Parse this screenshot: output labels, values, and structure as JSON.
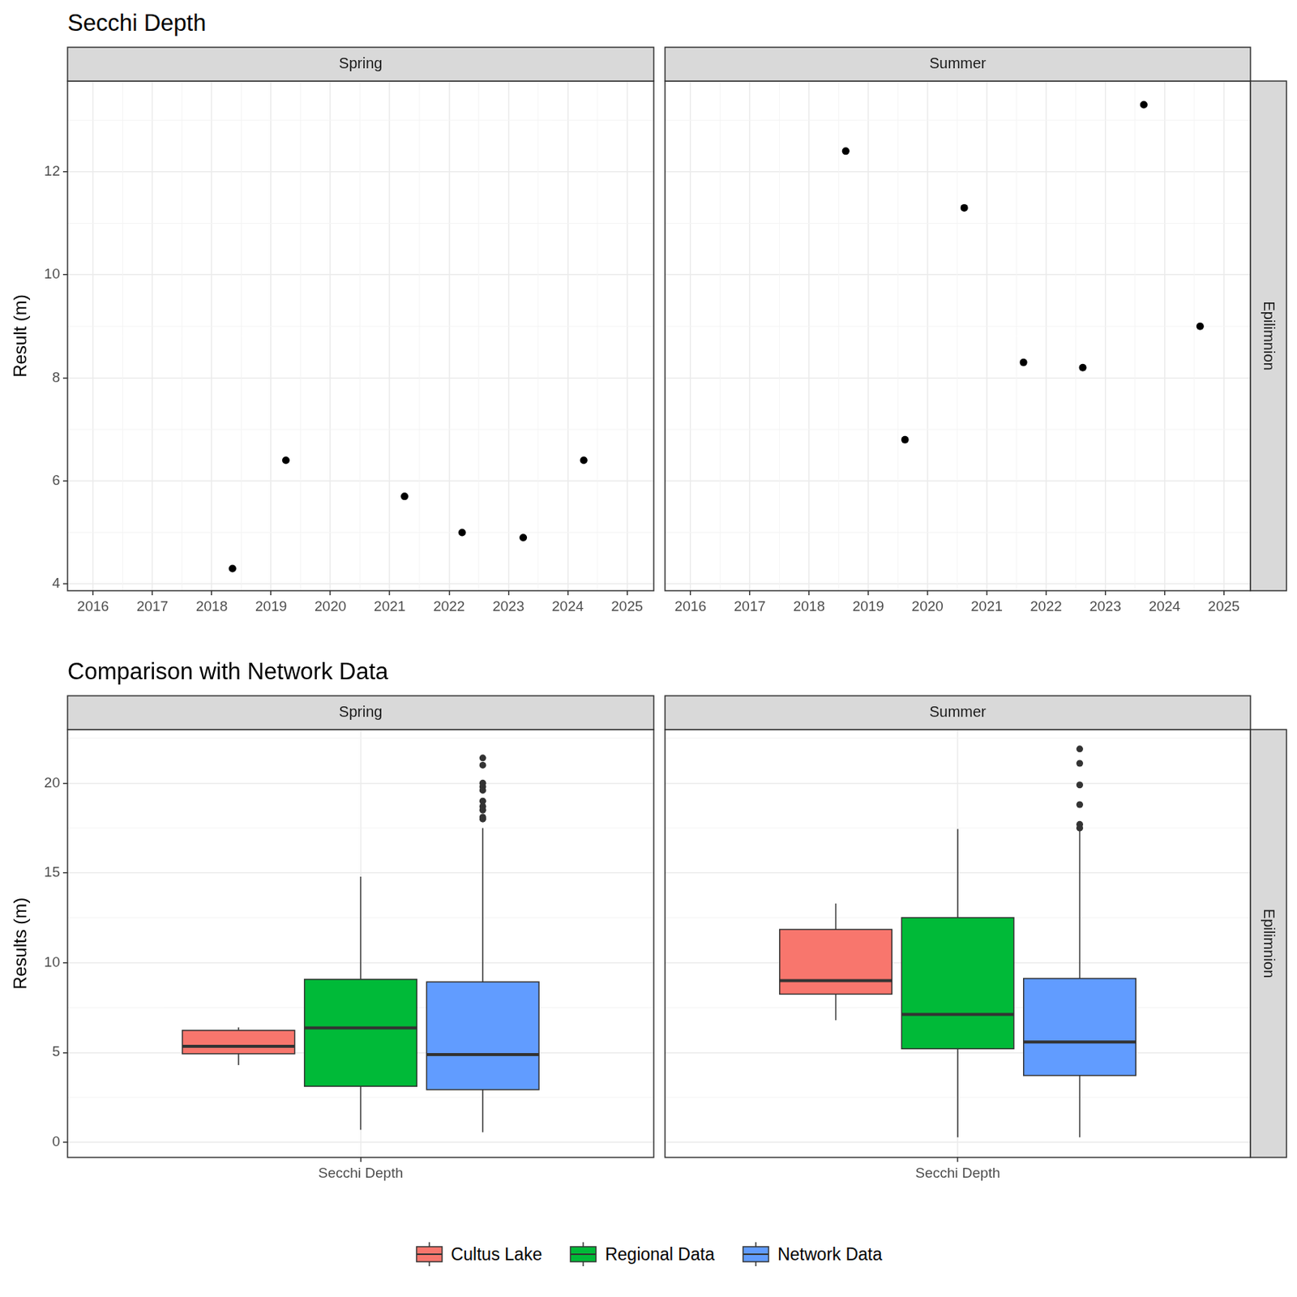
{
  "chart_data": [
    {
      "type": "scatter",
      "title": "Secchi Depth",
      "subtitle": "Spring",
      "ylabel": "Result (m)",
      "x": [
        2018.35,
        2019.25,
        2021.25,
        2022.22,
        2023.25,
        2024.27
      ],
      "values": [
        4.3,
        6.4,
        5.7,
        5.0,
        4.9,
        6.4
      ],
      "color": "#000000",
      "marker": "circle",
      "xlim": [
        2015.57,
        2025.45
      ],
      "xticks": [
        2016,
        2017,
        2018,
        2019,
        2020,
        2021,
        2022,
        2023,
        2024,
        2025
      ],
      "ylim": [
        3.87,
        13.76
      ],
      "yticks": [
        4,
        6,
        8,
        10,
        12
      ],
      "grid": true
    },
    {
      "type": "scatter",
      "subtitle": "Summer",
      "annotations": [
        "Epilimnion"
      ],
      "x": [
        2018.62,
        2019.62,
        2020.62,
        2021.62,
        2022.62,
        2023.65,
        2024.6
      ],
      "values": [
        12.4,
        6.8,
        11.3,
        8.3,
        8.2,
        13.3,
        9.0
      ],
      "color": "#000000",
      "marker": "circle",
      "xlim": [
        2015.57,
        2025.45
      ],
      "xticks": [
        2016,
        2017,
        2018,
        2019,
        2020,
        2021,
        2022,
        2023,
        2024,
        2025
      ],
      "ylim": [
        3.87,
        13.76
      ],
      "yticks": [
        4,
        6,
        8,
        10,
        12
      ],
      "grid": true,
      "tick_labels": "x"
    },
    {
      "type": "box",
      "title": "Comparison with Network Data",
      "subtitle": "Spring",
      "ylabel": "Results (m)",
      "categories": [
        "Secchi Depth"
      ],
      "series": [
        {
          "name": "Cultus Lake",
          "color": "#F8766D",
          "whisker_low": 4.3,
          "q1": 4.93,
          "median": 5.35,
          "q3": 6.23,
          "whisker_high": 6.4,
          "outliers": []
        },
        {
          "name": "Regional Data",
          "color": "#00BA38",
          "whisker_low": 0.7,
          "q1": 3.12,
          "median": 6.37,
          "q3": 9.07,
          "whisker_high": 14.79,
          "outliers": []
        },
        {
          "name": "Network Data",
          "color": "#619CFF",
          "whisker_low": 0.56,
          "q1": 2.93,
          "median": 4.88,
          "q3": 8.93,
          "whisker_high": 17.49,
          "outliers": [
            21.4,
            21.0,
            20.0,
            19.8,
            19.6,
            19.0,
            18.7,
            18.5,
            18.1,
            18.0
          ]
        }
      ],
      "ylim": [
        -0.84,
        22.98
      ],
      "yticks": [
        0,
        5,
        10,
        15,
        20
      ],
      "grid": true,
      "legend": "bottom"
    },
    {
      "type": "box",
      "subtitle": "Summer",
      "annotations": [
        "Epilimnion"
      ],
      "categories": [
        "Secchi Depth"
      ],
      "series": [
        {
          "name": "Cultus Lake",
          "color": "#F8766D",
          "whisker_low": 6.8,
          "q1": 8.25,
          "median": 9.0,
          "q3": 11.85,
          "whisker_high": 13.3,
          "outliers": []
        },
        {
          "name": "Regional Data",
          "color": "#00BA38",
          "whisker_low": 0.28,
          "q1": 5.21,
          "median": 7.12,
          "q3": 12.51,
          "whisker_high": 17.44,
          "outliers": []
        },
        {
          "name": "Network Data",
          "color": "#619CFF",
          "whisker_low": 0.28,
          "q1": 3.72,
          "median": 5.58,
          "q3": 9.12,
          "whisker_high": 17.4,
          "outliers": [
            21.9,
            21.1,
            19.9,
            18.8,
            17.7,
            17.5
          ]
        }
      ],
      "ylim": [
        -0.84,
        22.98
      ],
      "yticks": [
        0,
        5,
        10,
        15,
        20
      ],
      "grid": true,
      "tick_labels": "x"
    }
  ]
}
